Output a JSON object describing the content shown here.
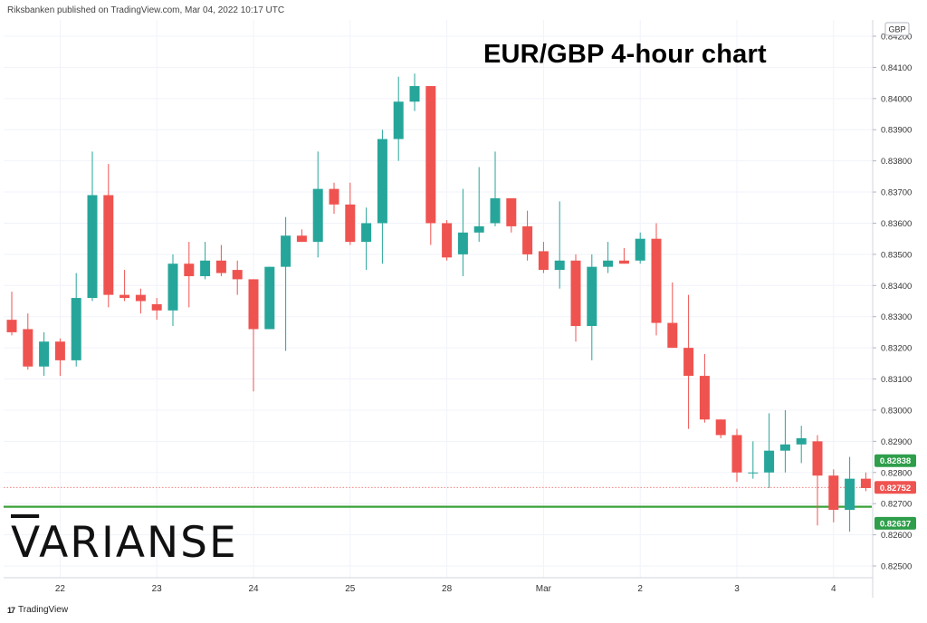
{
  "header": {
    "published": "Riksbanken published on TradingView.com, Mar 04, 2022 10:17 UTC"
  },
  "footer": {
    "logo": "17",
    "label": "TradingView"
  },
  "brand": {
    "first": "V",
    "rest": "ARIANSE"
  },
  "chart_data": {
    "type": "candlestick",
    "title": "EUR/GBP 4-hour chart",
    "currency": "GBP",
    "ylim": [
      0.8245,
      0.8428
    ],
    "yticks": [
      0.825,
      0.826,
      0.827,
      0.828,
      0.829,
      0.83,
      0.831,
      0.832,
      0.833,
      0.834,
      0.835,
      0.836,
      0.837,
      0.838,
      0.839,
      0.84,
      0.841,
      0.842
    ],
    "ytick_labels": [
      "0.82500",
      "0.82600",
      "0.82700",
      "0.82800",
      "0.82900",
      "0.83000",
      "0.83100",
      "0.83200",
      "0.83300",
      "0.83400",
      "0.83500",
      "0.83600",
      "0.83700",
      "0.83800",
      "0.83900",
      "0.84000",
      "0.84100",
      "0.84200"
    ],
    "xticks": [
      {
        "label": "22",
        "index": 3
      },
      {
        "label": "23",
        "index": 9
      },
      {
        "label": "24",
        "index": 15
      },
      {
        "label": "25",
        "index": 21
      },
      {
        "label": "28",
        "index": 27
      },
      {
        "label": "Mar",
        "index": 33
      },
      {
        "label": "2",
        "index": 39
      },
      {
        "label": "3",
        "index": 45
      },
      {
        "label": "4",
        "index": 51
      }
    ],
    "candles": [
      {
        "o": 0.8329,
        "h": 0.8338,
        "l": 0.8324,
        "c": 0.8325
      },
      {
        "o": 0.8326,
        "h": 0.8331,
        "l": 0.8313,
        "c": 0.8314
      },
      {
        "o": 0.8314,
        "h": 0.8325,
        "l": 0.8311,
        "c": 0.8322
      },
      {
        "o": 0.8322,
        "h": 0.8323,
        "l": 0.8311,
        "c": 0.8316
      },
      {
        "o": 0.8316,
        "h": 0.8344,
        "l": 0.8314,
        "c": 0.8336
      },
      {
        "o": 0.8336,
        "h": 0.8383,
        "l": 0.8335,
        "c": 0.8369
      },
      {
        "o": 0.8369,
        "h": 0.8379,
        "l": 0.8333,
        "c": 0.8337
      },
      {
        "o": 0.8337,
        "h": 0.8345,
        "l": 0.8335,
        "c": 0.8336
      },
      {
        "o": 0.8337,
        "h": 0.8339,
        "l": 0.8331,
        "c": 0.8335
      },
      {
        "o": 0.8334,
        "h": 0.8336,
        "l": 0.8329,
        "c": 0.8332
      },
      {
        "o": 0.8332,
        "h": 0.835,
        "l": 0.8327,
        "c": 0.8347
      },
      {
        "o": 0.8347,
        "h": 0.8354,
        "l": 0.8333,
        "c": 0.8343
      },
      {
        "o": 0.8343,
        "h": 0.8354,
        "l": 0.8342,
        "c": 0.8348
      },
      {
        "o": 0.8348,
        "h": 0.8353,
        "l": 0.8343,
        "c": 0.8344
      },
      {
        "o": 0.8345,
        "h": 0.8348,
        "l": 0.8337,
        "c": 0.8342
      },
      {
        "o": 0.8342,
        "h": 0.8342,
        "l": 0.8306,
        "c": 0.8326
      },
      {
        "o": 0.8326,
        "h": 0.8346,
        "l": 0.8326,
        "c": 0.8346
      },
      {
        "o": 0.8346,
        "h": 0.8362,
        "l": 0.8319,
        "c": 0.8356
      },
      {
        "o": 0.8356,
        "h": 0.8358,
        "l": 0.8354,
        "c": 0.8354
      },
      {
        "o": 0.8354,
        "h": 0.8383,
        "l": 0.8349,
        "c": 0.8371
      },
      {
        "o": 0.8371,
        "h": 0.8373,
        "l": 0.8363,
        "c": 0.8366
      },
      {
        "o": 0.8366,
        "h": 0.8373,
        "l": 0.8353,
        "c": 0.8354
      },
      {
        "o": 0.8354,
        "h": 0.8365,
        "l": 0.8345,
        "c": 0.836
      },
      {
        "o": 0.836,
        "h": 0.839,
        "l": 0.8347,
        "c": 0.8387
      },
      {
        "o": 0.8387,
        "h": 0.8407,
        "l": 0.838,
        "c": 0.8399
      },
      {
        "o": 0.8399,
        "h": 0.8408,
        "l": 0.8396,
        "c": 0.8404
      },
      {
        "o": 0.8404,
        "h": 0.8404,
        "l": 0.8353,
        "c": 0.836
      },
      {
        "o": 0.836,
        "h": 0.8361,
        "l": 0.8348,
        "c": 0.8349
      },
      {
        "o": 0.835,
        "h": 0.8371,
        "l": 0.8343,
        "c": 0.8357
      },
      {
        "o": 0.8357,
        "h": 0.8378,
        "l": 0.8354,
        "c": 0.8359
      },
      {
        "o": 0.836,
        "h": 0.8383,
        "l": 0.8359,
        "c": 0.8368
      },
      {
        "o": 0.8368,
        "h": 0.8368,
        "l": 0.8357,
        "c": 0.8359
      },
      {
        "o": 0.8359,
        "h": 0.8364,
        "l": 0.8348,
        "c": 0.835
      },
      {
        "o": 0.8351,
        "h": 0.8354,
        "l": 0.8344,
        "c": 0.8345
      },
      {
        "o": 0.8345,
        "h": 0.8367,
        "l": 0.8339,
        "c": 0.8348
      },
      {
        "o": 0.8348,
        "h": 0.835,
        "l": 0.8322,
        "c": 0.8327
      },
      {
        "o": 0.8327,
        "h": 0.835,
        "l": 0.8316,
        "c": 0.8346
      },
      {
        "o": 0.8346,
        "h": 0.8354,
        "l": 0.8344,
        "c": 0.8348
      },
      {
        "o": 0.8348,
        "h": 0.8352,
        "l": 0.8347,
        "c": 0.8347
      },
      {
        "o": 0.8348,
        "h": 0.8357,
        "l": 0.8347,
        "c": 0.8355
      },
      {
        "o": 0.8355,
        "h": 0.836,
        "l": 0.8324,
        "c": 0.8328
      },
      {
        "o": 0.8328,
        "h": 0.8341,
        "l": 0.832,
        "c": 0.832
      },
      {
        "o": 0.832,
        "h": 0.8337,
        "l": 0.8294,
        "c": 0.8311
      },
      {
        "o": 0.8311,
        "h": 0.8318,
        "l": 0.8296,
        "c": 0.8297
      },
      {
        "o": 0.8297,
        "h": 0.8297,
        "l": 0.8291,
        "c": 0.8292
      },
      {
        "o": 0.8292,
        "h": 0.8294,
        "l": 0.8277,
        "c": 0.828
      },
      {
        "o": 0.828,
        "h": 0.829,
        "l": 0.8278,
        "c": 0.828
      },
      {
        "o": 0.828,
        "h": 0.8299,
        "l": 0.8275,
        "c": 0.8287
      },
      {
        "o": 0.8287,
        "h": 0.83,
        "l": 0.828,
        "c": 0.8289
      },
      {
        "o": 0.8289,
        "h": 0.8295,
        "l": 0.8283,
        "c": 0.8291
      },
      {
        "o": 0.829,
        "h": 0.8292,
        "l": 0.8263,
        "c": 0.8279
      },
      {
        "o": 0.8279,
        "h": 0.8281,
        "l": 0.8264,
        "c": 0.8268
      },
      {
        "o": 0.8268,
        "h": 0.8285,
        "l": 0.8261,
        "c": 0.8278
      },
      {
        "o": 0.8278,
        "h": 0.828,
        "l": 0.8274,
        "c": 0.8275
      }
    ],
    "support_level": 0.8269,
    "last_price_line": 0.82752,
    "price_labels": [
      {
        "value": 0.82838,
        "text": "0.82838",
        "color": "#2e9e4a"
      },
      {
        "value": 0.82752,
        "text": "0.82752",
        "color": "#ef5350"
      },
      {
        "value": 0.82637,
        "text": "0.82637",
        "color": "#2e9e4a"
      }
    ],
    "colors": {
      "up": "#26a69a",
      "down": "#ef5350",
      "support": "#3aa23a",
      "grid": "#f0f3fa"
    },
    "grid": true
  }
}
